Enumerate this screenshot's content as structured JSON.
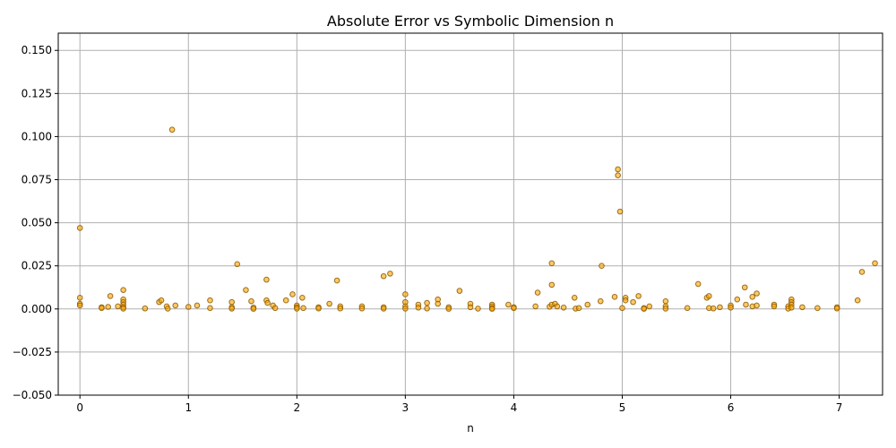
{
  "chart_data": {
    "type": "scatter",
    "title": "Absolute Error vs Symbolic Dimension n",
    "xlabel": "n",
    "ylabel": "",
    "xlim": [
      -0.2,
      7.4
    ],
    "ylim": [
      -0.05,
      0.16
    ],
    "xticks": [
      0,
      1,
      2,
      3,
      4,
      5,
      6,
      7
    ],
    "xtick_labels": [
      "0",
      "1",
      "2",
      "3",
      "4",
      "5",
      "6",
      "7"
    ],
    "yticks": [
      -0.05,
      -0.025,
      0.0,
      0.025,
      0.05,
      0.075,
      0.1,
      0.125,
      0.15
    ],
    "ytick_labels": [
      "−0.050",
      "−0.025",
      "0.000",
      "0.025",
      "0.050",
      "0.075",
      "0.100",
      "0.125",
      "0.150"
    ],
    "grid": true,
    "marker_color": "#ffa500",
    "marker_edge_color": "#8b5a00",
    "points": [
      {
        "x": 0.0,
        "y": 0.047
      },
      {
        "x": 0.0,
        "y": 0.0065
      },
      {
        "x": 0.0,
        "y": 0.003
      },
      {
        "x": 0.0,
        "y": 0.002
      },
      {
        "x": 0.2,
        "y": 0.001
      },
      {
        "x": 0.2,
        "y": 0.0005
      },
      {
        "x": 0.26,
        "y": 0.0012
      },
      {
        "x": 0.28,
        "y": 0.0075
      },
      {
        "x": 0.35,
        "y": 0.0015
      },
      {
        "x": 0.4,
        "y": 0.011
      },
      {
        "x": 0.4,
        "y": 0.0055
      },
      {
        "x": 0.4,
        "y": 0.004
      },
      {
        "x": 0.4,
        "y": 0.0025
      },
      {
        "x": 0.4,
        "y": 0.001
      },
      {
        "x": 0.4,
        "y": 0.0002
      },
      {
        "x": 0.6,
        "y": 0.0003
      },
      {
        "x": 0.73,
        "y": 0.004
      },
      {
        "x": 0.75,
        "y": 0.005
      },
      {
        "x": 0.8,
        "y": 0.0015
      },
      {
        "x": 0.81,
        "y": 0.0002
      },
      {
        "x": 0.85,
        "y": 0.104
      },
      {
        "x": 0.88,
        "y": 0.002
      },
      {
        "x": 1.0,
        "y": 0.0012
      },
      {
        "x": 1.08,
        "y": 0.002
      },
      {
        "x": 1.2,
        "y": 0.005
      },
      {
        "x": 1.2,
        "y": 0.0005
      },
      {
        "x": 1.4,
        "y": 0.004
      },
      {
        "x": 1.4,
        "y": 0.001
      },
      {
        "x": 1.4,
        "y": 0.0002
      },
      {
        "x": 1.45,
        "y": 0.026
      },
      {
        "x": 1.53,
        "y": 0.011
      },
      {
        "x": 1.58,
        "y": 0.0045
      },
      {
        "x": 1.6,
        "y": 0.0008
      },
      {
        "x": 1.6,
        "y": 0.0001
      },
      {
        "x": 1.72,
        "y": 0.017
      },
      {
        "x": 1.72,
        "y": 0.005
      },
      {
        "x": 1.73,
        "y": 0.0035
      },
      {
        "x": 1.78,
        "y": 0.002
      },
      {
        "x": 1.8,
        "y": 0.0005
      },
      {
        "x": 1.9,
        "y": 0.005
      },
      {
        "x": 1.96,
        "y": 0.0085
      },
      {
        "x": 2.0,
        "y": 0.002
      },
      {
        "x": 2.0,
        "y": 0.001
      },
      {
        "x": 2.0,
        "y": 0.0002
      },
      {
        "x": 2.05,
        "y": 0.0065
      },
      {
        "x": 2.06,
        "y": 0.0005
      },
      {
        "x": 2.2,
        "y": 0.001
      },
      {
        "x": 2.2,
        "y": 0.0003
      },
      {
        "x": 2.3,
        "y": 0.003
      },
      {
        "x": 2.37,
        "y": 0.0165
      },
      {
        "x": 2.4,
        "y": 0.0015
      },
      {
        "x": 2.4,
        "y": 0.0003
      },
      {
        "x": 2.6,
        "y": 0.0015
      },
      {
        "x": 2.6,
        "y": 0.0003
      },
      {
        "x": 2.8,
        "y": 0.019
      },
      {
        "x": 2.8,
        "y": 0.001
      },
      {
        "x": 2.8,
        "y": 0.0002
      },
      {
        "x": 2.86,
        "y": 0.0205
      },
      {
        "x": 3.0,
        "y": 0.0085
      },
      {
        "x": 3.0,
        "y": 0.004
      },
      {
        "x": 3.0,
        "y": 0.0015
      },
      {
        "x": 3.0,
        "y": 0.0002
      },
      {
        "x": 3.12,
        "y": 0.0025
      },
      {
        "x": 3.12,
        "y": 0.0008
      },
      {
        "x": 3.2,
        "y": 0.0035
      },
      {
        "x": 3.2,
        "y": 0.0003
      },
      {
        "x": 3.3,
        "y": 0.0055
      },
      {
        "x": 3.3,
        "y": 0.003
      },
      {
        "x": 3.4,
        "y": 0.001
      },
      {
        "x": 3.4,
        "y": 0.0001
      },
      {
        "x": 3.5,
        "y": 0.0105
      },
      {
        "x": 3.6,
        "y": 0.003
      },
      {
        "x": 3.6,
        "y": 0.001
      },
      {
        "x": 3.67,
        "y": 0.0002
      },
      {
        "x": 3.8,
        "y": 0.0025
      },
      {
        "x": 3.8,
        "y": 0.0015
      },
      {
        "x": 3.8,
        "y": 0.0004
      },
      {
        "x": 3.8,
        "y": 0.0001
      },
      {
        "x": 3.95,
        "y": 0.0025
      },
      {
        "x": 4.0,
        "y": 0.001
      },
      {
        "x": 4.0,
        "y": 0.0005
      },
      {
        "x": 4.2,
        "y": 0.0015
      },
      {
        "x": 4.22,
        "y": 0.0095
      },
      {
        "x": 4.33,
        "y": 0.0013
      },
      {
        "x": 4.35,
        "y": 0.0265
      },
      {
        "x": 4.35,
        "y": 0.014
      },
      {
        "x": 4.35,
        "y": 0.0025
      },
      {
        "x": 4.38,
        "y": 0.003
      },
      {
        "x": 4.4,
        "y": 0.0015
      },
      {
        "x": 4.46,
        "y": 0.0008
      },
      {
        "x": 4.56,
        "y": 0.0065
      },
      {
        "x": 4.57,
        "y": 0.0002
      },
      {
        "x": 4.6,
        "y": 0.0005
      },
      {
        "x": 4.68,
        "y": 0.0025
      },
      {
        "x": 4.8,
        "y": 0.0045
      },
      {
        "x": 4.81,
        "y": 0.025
      },
      {
        "x": 4.93,
        "y": 0.007
      },
      {
        "x": 4.96,
        "y": 0.081
      },
      {
        "x": 4.96,
        "y": 0.0775
      },
      {
        "x": 4.98,
        "y": 0.0565
      },
      {
        "x": 5.0,
        "y": 0.0005
      },
      {
        "x": 5.03,
        "y": 0.0065
      },
      {
        "x": 5.03,
        "y": 0.005
      },
      {
        "x": 5.1,
        "y": 0.004
      },
      {
        "x": 5.15,
        "y": 0.0075
      },
      {
        "x": 5.2,
        "y": 0.0005
      },
      {
        "x": 5.2,
        "y": 0.0001
      },
      {
        "x": 5.25,
        "y": 0.0015
      },
      {
        "x": 5.4,
        "y": 0.0045
      },
      {
        "x": 5.4,
        "y": 0.0015
      },
      {
        "x": 5.4,
        "y": 0.0002
      },
      {
        "x": 5.6,
        "y": 0.0005
      },
      {
        "x": 5.7,
        "y": 0.0145
      },
      {
        "x": 5.78,
        "y": 0.0065
      },
      {
        "x": 5.8,
        "y": 0.0075
      },
      {
        "x": 5.8,
        "y": 0.0005
      },
      {
        "x": 5.84,
        "y": 0.0003
      },
      {
        "x": 5.9,
        "y": 0.001
      },
      {
        "x": 6.0,
        "y": 0.002
      },
      {
        "x": 6.0,
        "y": 0.0008
      },
      {
        "x": 6.06,
        "y": 0.0055
      },
      {
        "x": 6.13,
        "y": 0.0125
      },
      {
        "x": 6.14,
        "y": 0.0025
      },
      {
        "x": 6.2,
        "y": 0.007
      },
      {
        "x": 6.2,
        "y": 0.0015
      },
      {
        "x": 6.24,
        "y": 0.009
      },
      {
        "x": 6.24,
        "y": 0.002
      },
      {
        "x": 6.4,
        "y": 0.0025
      },
      {
        "x": 6.4,
        "y": 0.0015
      },
      {
        "x": 6.53,
        "y": 0.0015
      },
      {
        "x": 6.53,
        "y": 0.0002
      },
      {
        "x": 6.56,
        "y": 0.0055
      },
      {
        "x": 6.56,
        "y": 0.004
      },
      {
        "x": 6.56,
        "y": 0.0025
      },
      {
        "x": 6.56,
        "y": 0.0008
      },
      {
        "x": 6.66,
        "y": 0.001
      },
      {
        "x": 6.8,
        "y": 0.0005
      },
      {
        "x": 6.98,
        "y": 0.001
      },
      {
        "x": 6.98,
        "y": 0.0003
      },
      {
        "x": 7.17,
        "y": 0.005
      },
      {
        "x": 7.21,
        "y": 0.0215
      },
      {
        "x": 7.33,
        "y": 0.0265
      }
    ]
  }
}
